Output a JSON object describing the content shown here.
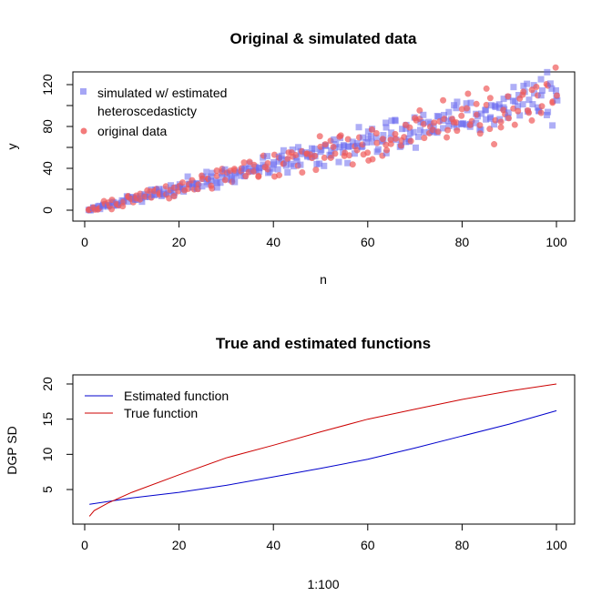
{
  "chart_data": [
    {
      "type": "scatter",
      "title": "Original & simulated data",
      "xlabel": "n",
      "ylabel": "y",
      "xlim": [
        0,
        100
      ],
      "ylim": [
        0,
        125
      ],
      "xticks": [
        "0",
        "20",
        "40",
        "60",
        "80",
        "100"
      ],
      "yticks": [
        "0",
        "40",
        "80",
        "120"
      ],
      "legend_position": "top-left",
      "series": [
        {
          "name": "simulated w/ estimated heteroscedasticty",
          "legend_lines": [
            "simulated w/ estimated",
            "heteroscedasticty"
          ],
          "color": "#6b6bef",
          "marker": "square",
          "x_from": 1,
          "x_to": 100,
          "note_values": "generated"
        },
        {
          "name": "original data",
          "legend_lines": [
            "original data"
          ],
          "color": "#f05a5a",
          "marker": "circle",
          "x_from": 1,
          "x_to": 100
        }
      ]
    },
    {
      "type": "line",
      "title": "True and estimated functions",
      "xlabel": "1:100",
      "ylabel": "DGP SD",
      "xlim": [
        1,
        100
      ],
      "ylim": [
        1,
        20
      ],
      "xticks": [
        "0",
        "20",
        "40",
        "60",
        "80",
        "100"
      ],
      "yticks": [
        "5",
        "10",
        "15",
        "20"
      ],
      "legend_position": "top-left",
      "series": [
        {
          "name": "Estimated function",
          "color": "#0000cc",
          "x": [
            1,
            10,
            20,
            30,
            40,
            50,
            60,
            70,
            80,
            90,
            100
          ],
          "y": [
            2.9,
            3.8,
            4.6,
            5.6,
            6.8,
            8.0,
            9.3,
            10.9,
            12.6,
            14.3,
            16.2
          ]
        },
        {
          "name": "True function",
          "color": "#cc0000",
          "x": [
            1,
            2,
            5,
            10,
            20,
            30,
            40,
            50,
            60,
            70,
            80,
            90,
            100
          ],
          "y": [
            1.2,
            2.0,
            3.1,
            4.6,
            7.1,
            9.5,
            11.3,
            13.2,
            15.0,
            16.4,
            17.8,
            19.0,
            20.0
          ]
        }
      ]
    }
  ]
}
